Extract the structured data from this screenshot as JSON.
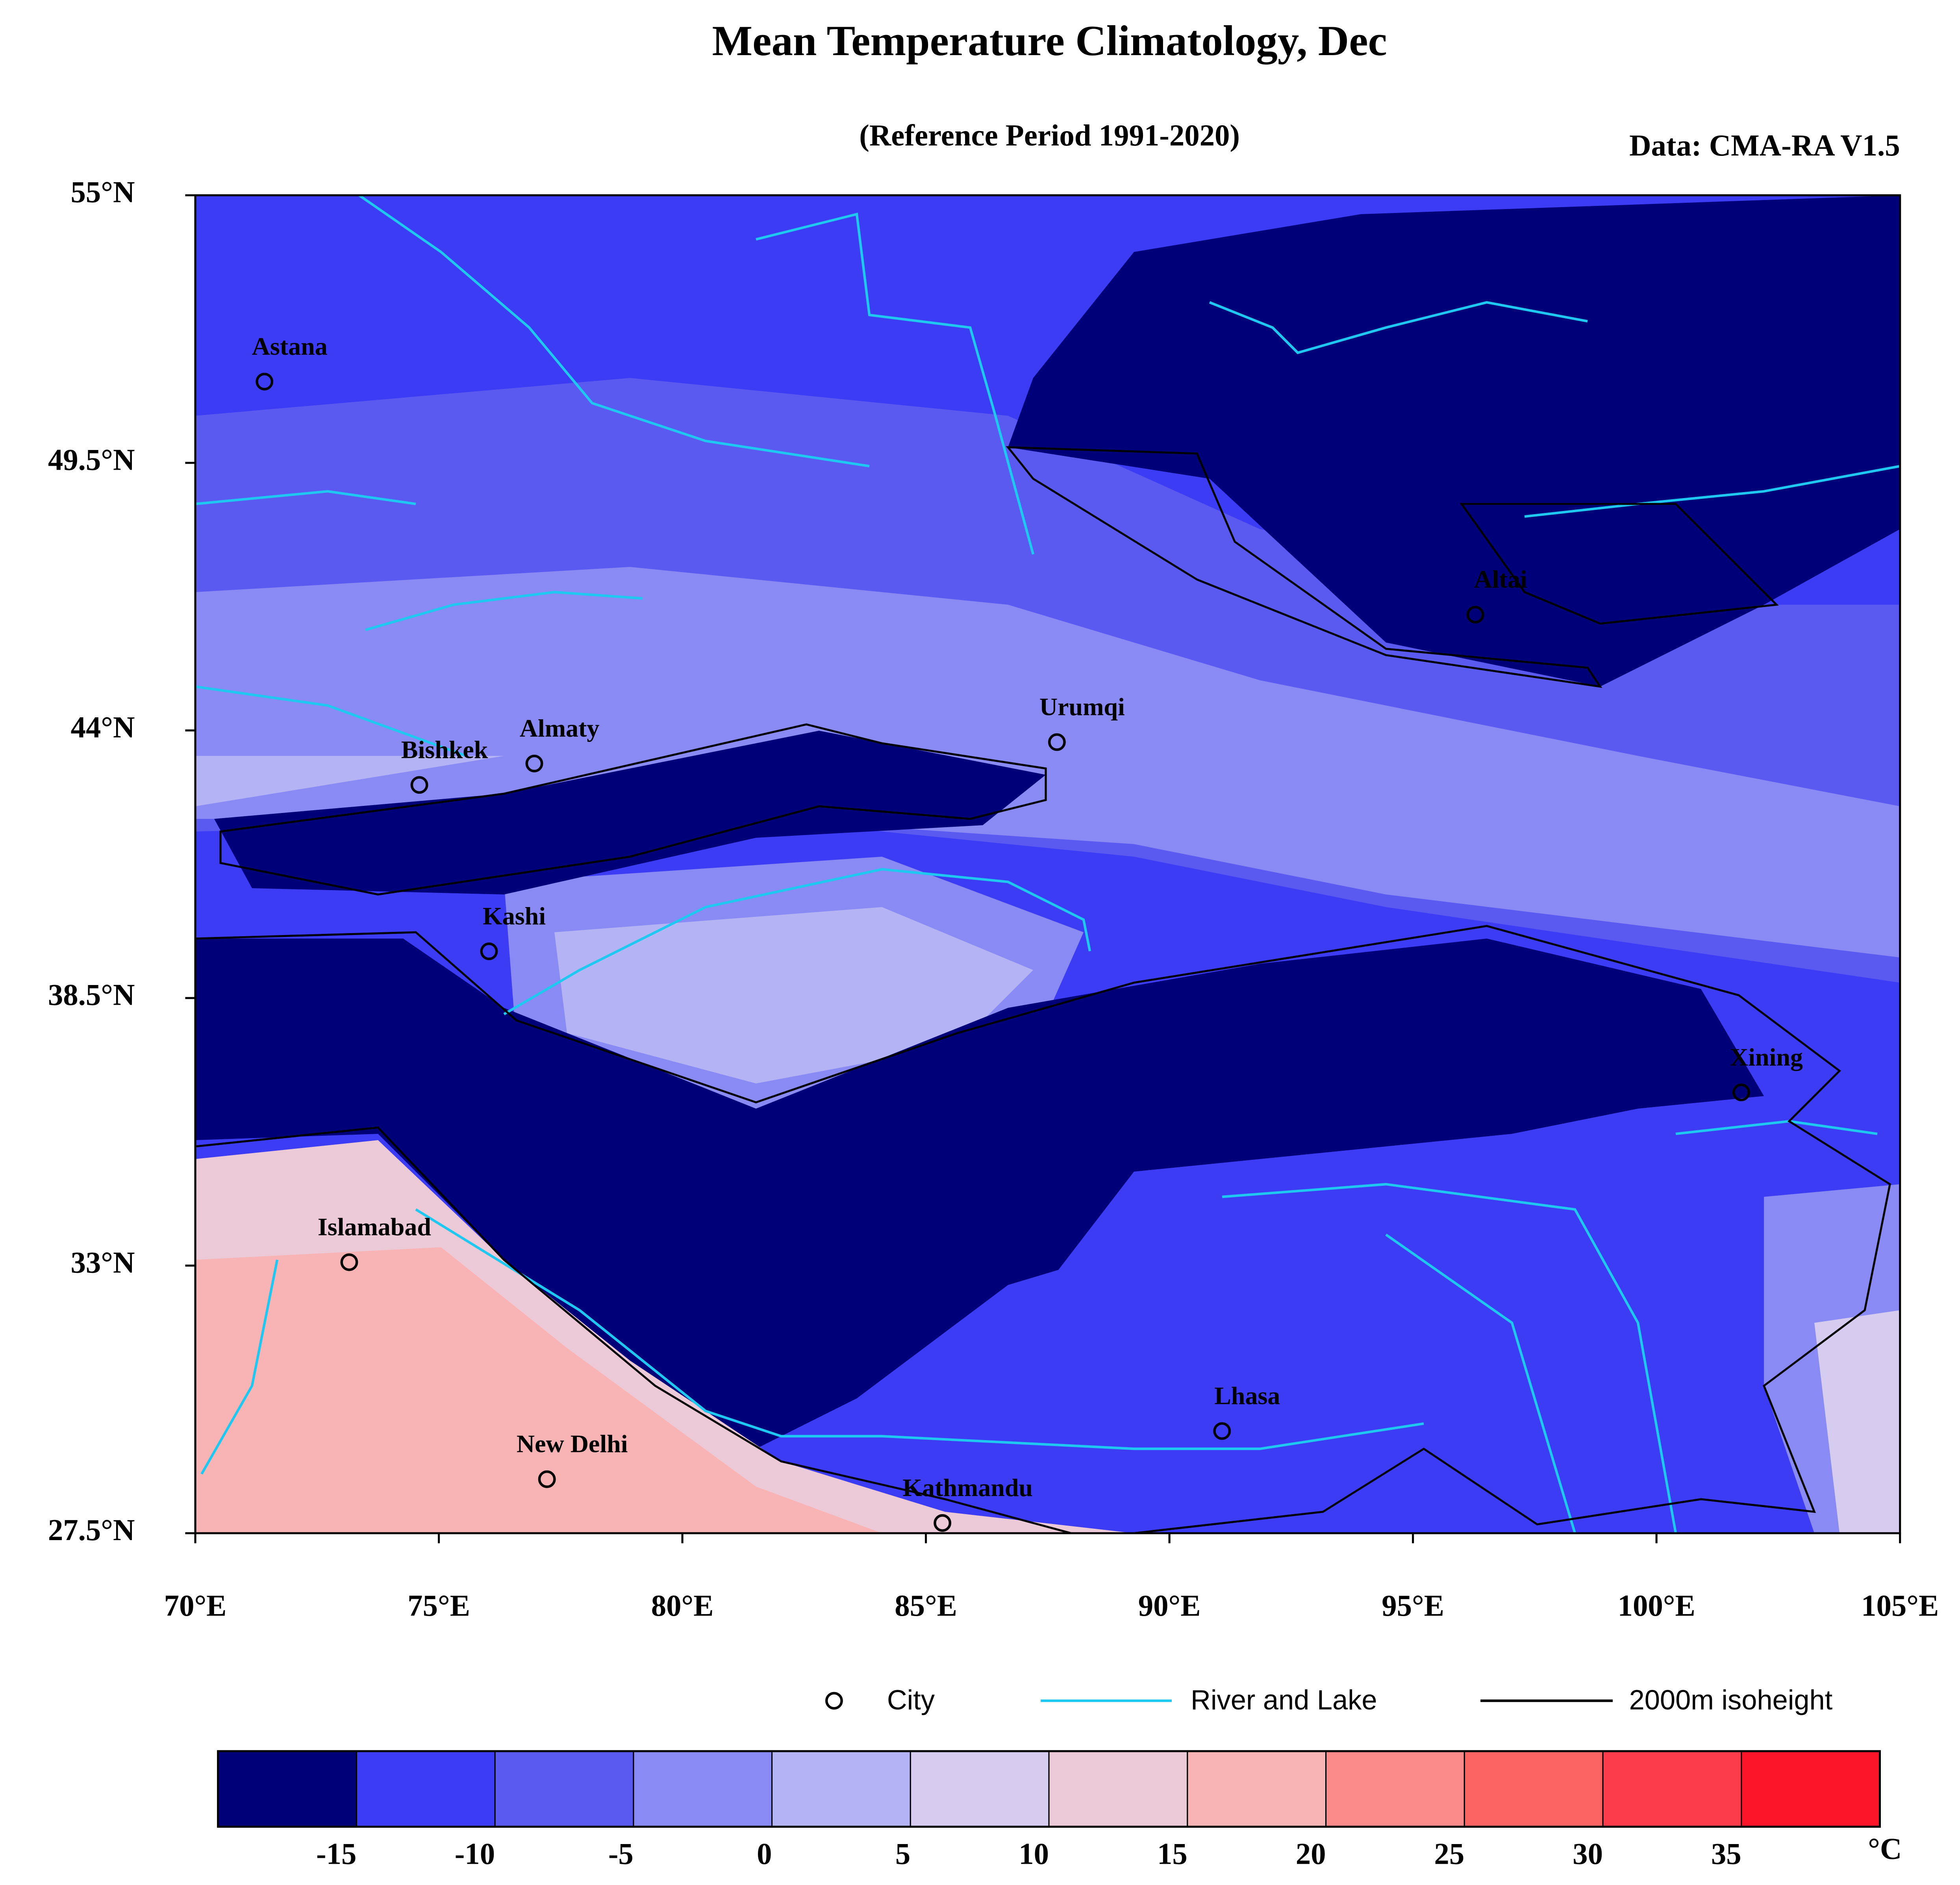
{
  "header": {
    "title": "Mean Temperature Climatology, Dec",
    "subtitle": "(Reference Period 1991-2020)",
    "source": "Data: CMA-RA V1.5"
  },
  "map": {
    "xlim": [
      70,
      105
    ],
    "ylim": [
      27.5,
      55
    ],
    "xticks": [
      {
        "value": 70,
        "label": "70°E"
      },
      {
        "value": 75,
        "label": "75°E"
      },
      {
        "value": 80,
        "label": "80°E"
      },
      {
        "value": 85,
        "label": "85°E"
      },
      {
        "value": 90,
        "label": "90°E"
      },
      {
        "value": 95,
        "label": "95°E"
      },
      {
        "value": 100,
        "label": "100°E"
      },
      {
        "value": 105,
        "label": "105°E"
      }
    ],
    "yticks": [
      {
        "value": 27.5,
        "label": "27.5°N"
      },
      {
        "value": 33,
        "label": "33°N"
      },
      {
        "value": 38.5,
        "label": "38.5°N"
      },
      {
        "value": 44,
        "label": "44°N"
      },
      {
        "value": 49.5,
        "label": "49.5°N"
      },
      {
        "value": 55,
        "label": "55°N"
      }
    ],
    "cities": [
      {
        "name": "Astana",
        "lon": 71.42,
        "lat": 51.17
      },
      {
        "name": "Bishkek",
        "lon": 74.6,
        "lat": 42.88
      },
      {
        "name": "Almaty",
        "lon": 76.96,
        "lat": 43.32
      },
      {
        "name": "Kashi",
        "lon": 76.03,
        "lat": 39.46
      },
      {
        "name": "Urumqi",
        "lon": 87.69,
        "lat": 43.76
      },
      {
        "name": "Altai",
        "lon": 96.28,
        "lat": 46.38
      },
      {
        "name": "Xining",
        "lon": 101.74,
        "lat": 36.56
      },
      {
        "name": "Islamabad",
        "lon": 73.16,
        "lat": 33.07
      },
      {
        "name": "Lhasa",
        "lon": 91.08,
        "lat": 29.6
      },
      {
        "name": "New Delhi",
        "lon": 77.22,
        "lat": 28.61
      },
      {
        "name": "Kathmandu",
        "lon": 85.34,
        "lat": 27.71
      }
    ]
  },
  "legend": {
    "items": [
      "City",
      "River and Lake",
      "2000m isoheight"
    ]
  },
  "colorbar": {
    "lim": [
      -20,
      40
    ],
    "ticks": [
      -15,
      -10,
      -5,
      0,
      5,
      10,
      15,
      20,
      25,
      30,
      35
    ],
    "unit": "°C",
    "colors": [
      "#000078",
      "#3c3cf5",
      "#5a5af0",
      "#8a8af5",
      "#b4b4f5",
      "#d6ccef",
      "#ecc9d6",
      "#f8b4b4",
      "#fb8a8a",
      "#fc6464",
      "#fc3c4a",
      "#fc1428"
    ]
  }
}
